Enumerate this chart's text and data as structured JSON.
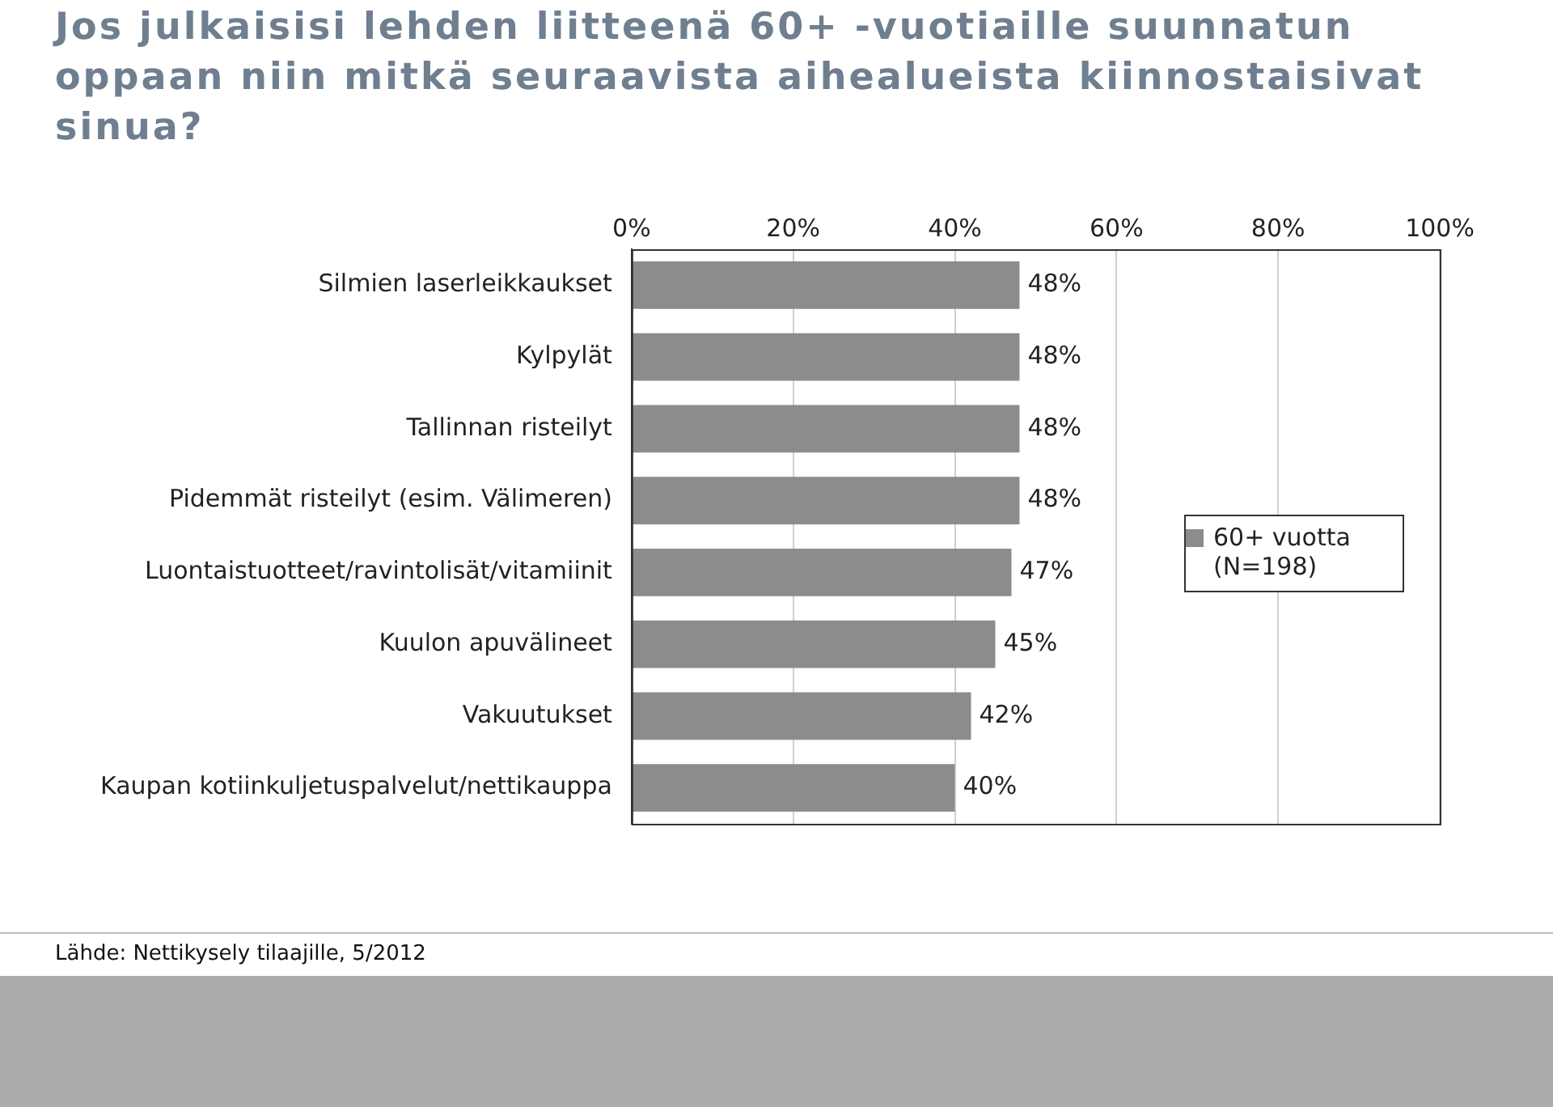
{
  "chart_data": {
    "type": "bar",
    "orientation": "horizontal",
    "title": "Jos julkaisisi lehden liitteenä 60+ -vuotiaille suunnatun oppaan niin mitkä seuraavista aihealueista kiinnostaisivat sinua?",
    "categories": [
      "Silmien laserleikkaukset",
      "Kylpylät",
      "Tallinnan risteilyt",
      "Pidemmät risteilyt (esim. Välimeren)",
      "Luontaistuotteet/ravintolisät/vitamiinit",
      "Kuulon apuvälineet",
      "Vakuutukset",
      "Kaupan kotiinkuljetuspalvelut/nettikauppa"
    ],
    "series": [
      {
        "name": "60+ vuotta (N=198)",
        "color": "#8c8c8c",
        "values": [
          48,
          48,
          48,
          48,
          47,
          45,
          42,
          40
        ]
      }
    ],
    "value_labels": [
      "48%",
      "48%",
      "48%",
      "48%",
      "47%",
      "45%",
      "42%",
      "40%"
    ],
    "xlim": [
      0,
      100
    ],
    "xticks": [
      {
        "value": 0,
        "label": "0%"
      },
      {
        "value": 20,
        "label": "20%"
      },
      {
        "value": 40,
        "label": "40%"
      },
      {
        "value": 60,
        "label": "60%"
      },
      {
        "value": 80,
        "label": "80%"
      },
      {
        "value": 100,
        "label": "100%"
      }
    ],
    "grid": "x",
    "legend": "right",
    "annotations": [
      "Lähde: Nettikysely tilaajille, 5/2012"
    ]
  }
}
